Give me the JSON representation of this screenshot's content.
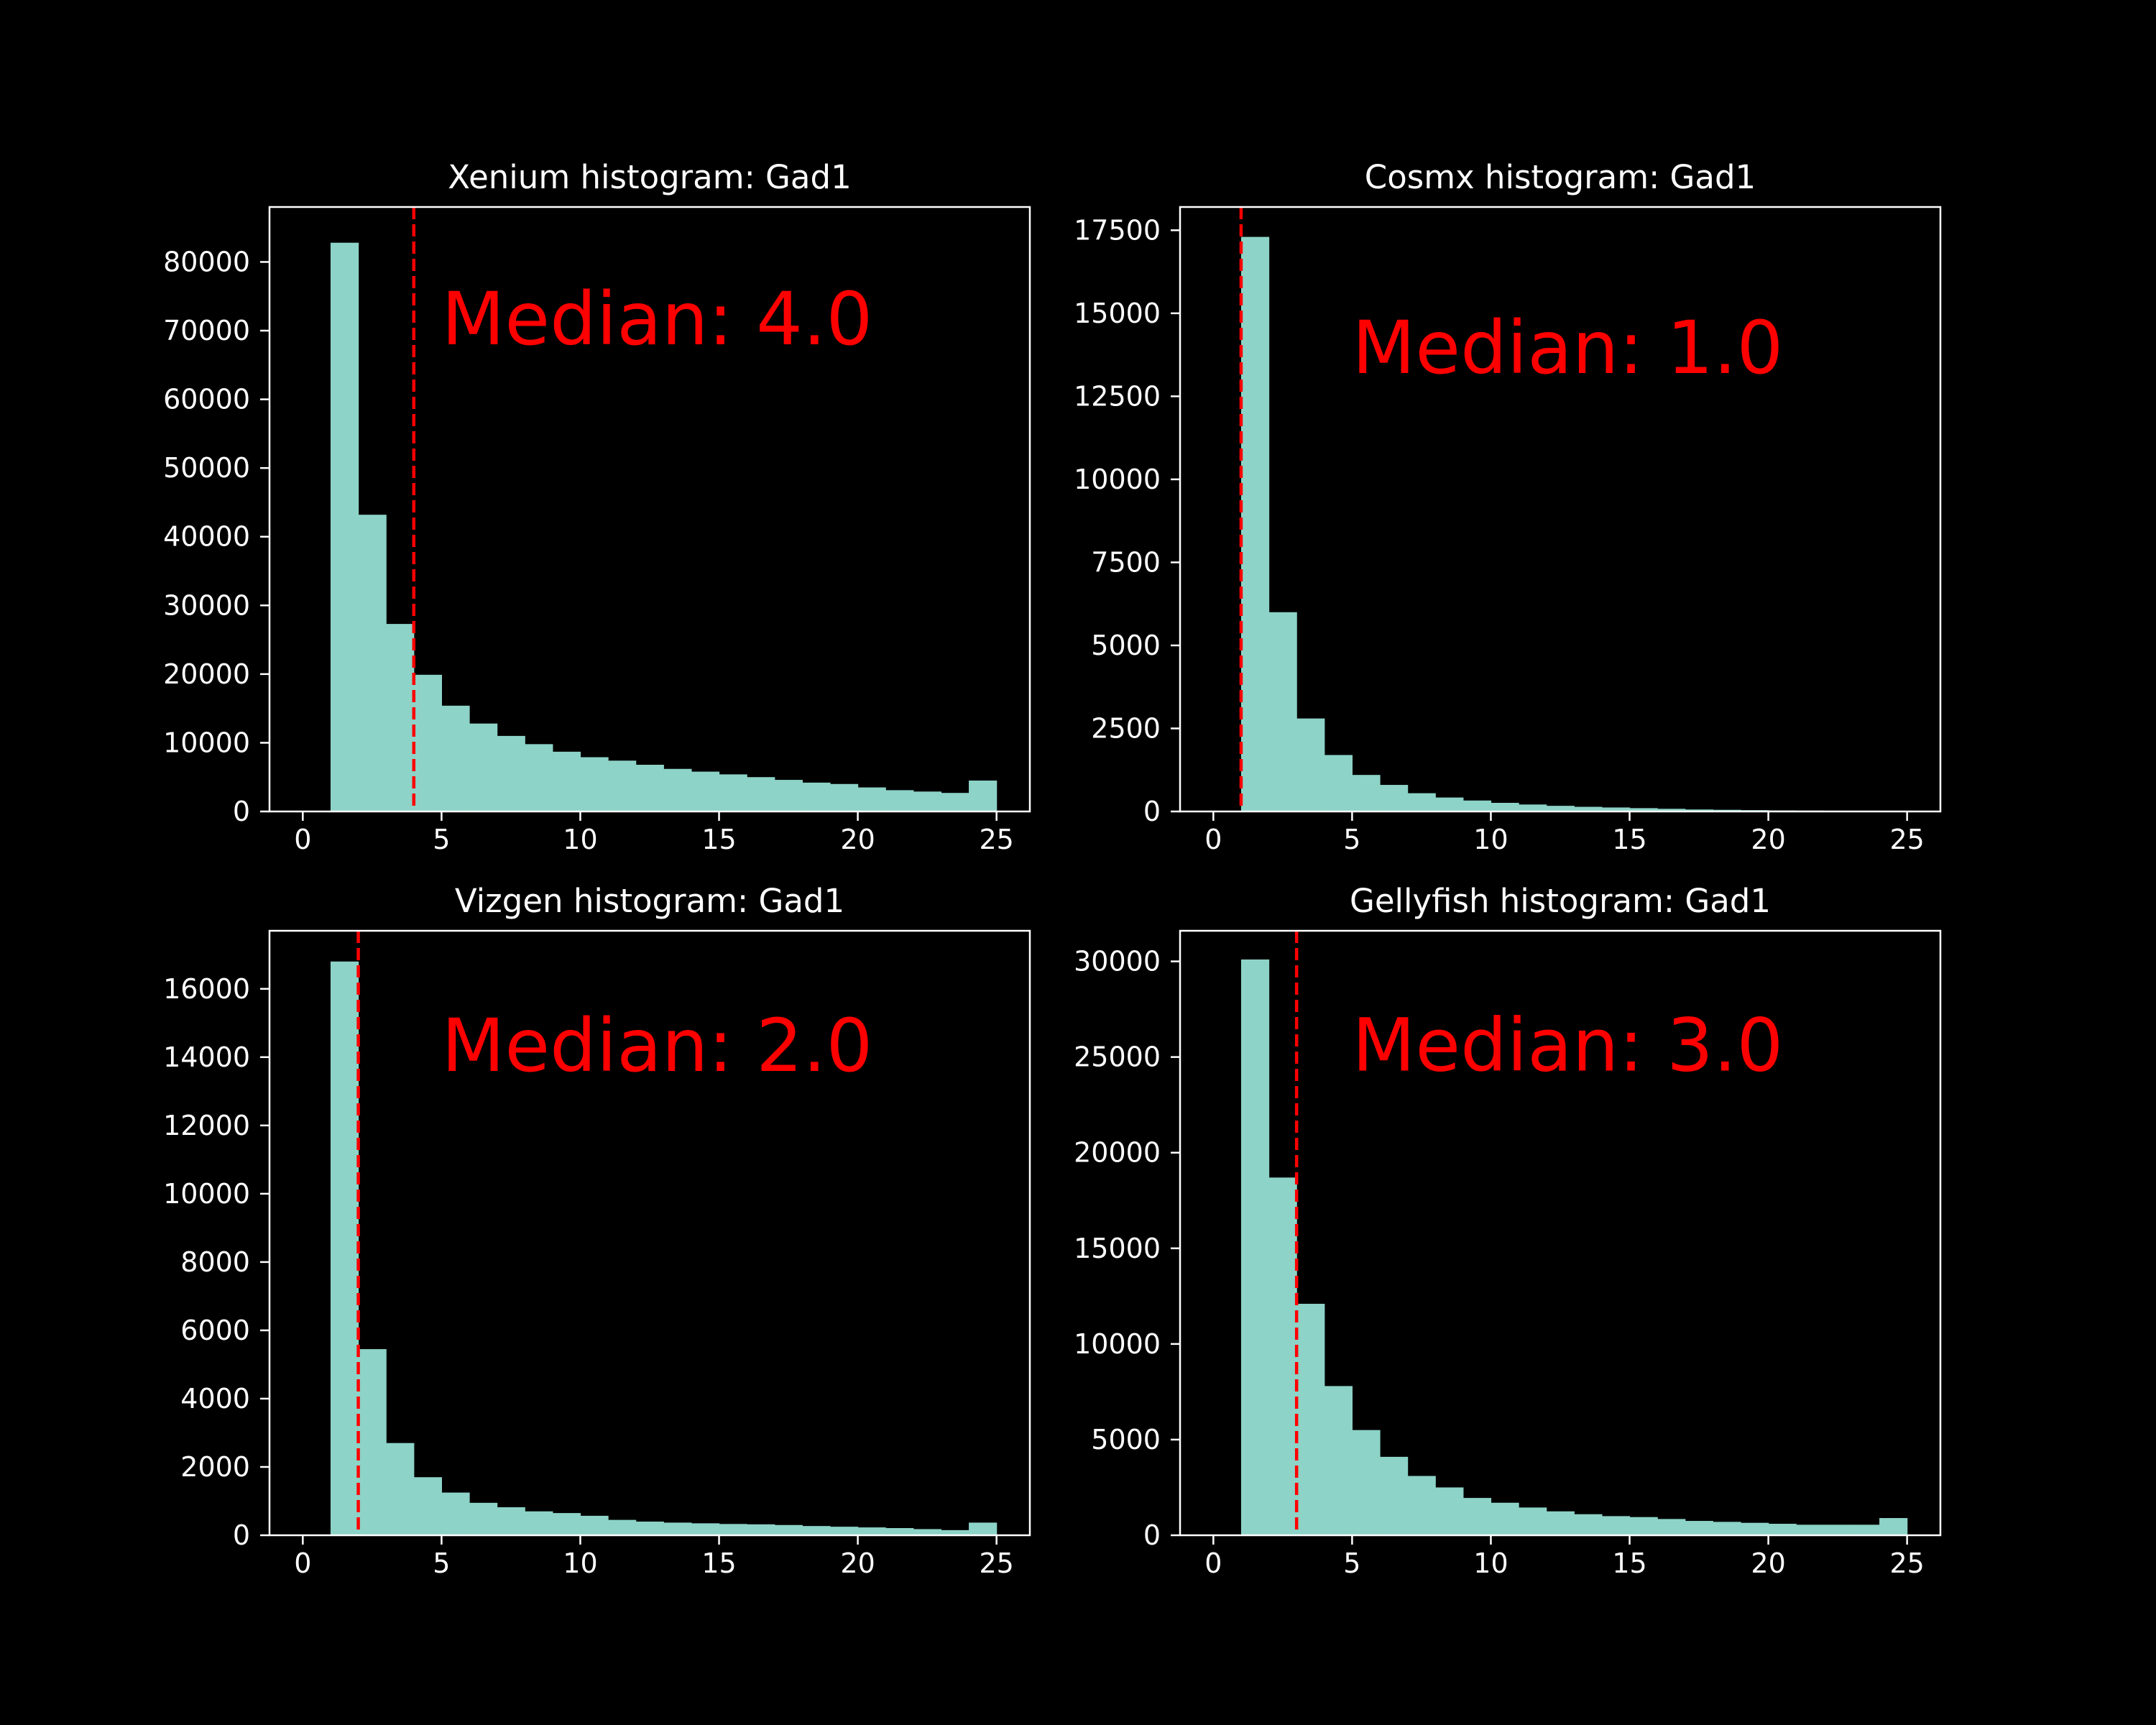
{
  "colors": {
    "background": "#000000",
    "bar": "#8dd3c7",
    "axis": "#ffffff",
    "median": "#ff0000"
  },
  "chart_data": [
    {
      "type": "bar",
      "title": "Xenium histogram: Gad1",
      "xlabel": "",
      "ylabel": "",
      "bin_edges": [
        1,
        2,
        3,
        4,
        5,
        6,
        7,
        8,
        9,
        10,
        11,
        12,
        13,
        14,
        15,
        16,
        17,
        18,
        19,
        20,
        21,
        22,
        23,
        24,
        25
      ],
      "values": [
        82800,
        43200,
        27300,
        19900,
        15400,
        12800,
        11000,
        9800,
        8700,
        7900,
        7400,
        6800,
        6200,
        5800,
        5400,
        5000,
        4600,
        4200,
        4000,
        3500,
        3100,
        2900,
        2700,
        4500
      ],
      "xlim": [
        -1.2,
        26.2
      ],
      "ylim": [
        0,
        88000
      ],
      "xticks": [
        0,
        5,
        10,
        15,
        20,
        25
      ],
      "yticks": [
        0,
        10000,
        20000,
        30000,
        40000,
        50000,
        60000,
        70000,
        80000
      ],
      "median": 4.0,
      "annotation": "Median: 4.0",
      "annotation_pos": [
        5,
        68000
      ],
      "grid": false,
      "legend": "none"
    },
    {
      "type": "bar",
      "title": "Cosmx histogram: Gad1",
      "xlabel": "",
      "ylabel": "",
      "bin_edges": [
        1,
        2,
        3,
        4,
        5,
        6,
        7,
        8,
        9,
        10,
        11,
        12,
        13,
        14,
        15,
        16,
        17,
        18,
        19,
        20,
        21,
        22,
        23,
        24,
        25
      ],
      "values": [
        17300,
        6000,
        2800,
        1700,
        1100,
        800,
        550,
        420,
        330,
        260,
        210,
        170,
        140,
        120,
        100,
        80,
        60,
        50,
        40,
        30,
        25,
        20,
        15,
        12
      ],
      "xlim": [
        -1.2,
        26.2
      ],
      "ylim": [
        0,
        18200
      ],
      "xticks": [
        0,
        5,
        10,
        15,
        20,
        25
      ],
      "yticks": [
        0,
        2500,
        5000,
        7500,
        10000,
        12500,
        15000,
        17500
      ],
      "median": 1.0,
      "annotation": "Median: 1.0",
      "annotation_pos": [
        5,
        13200
      ],
      "grid": false,
      "legend": "none"
    },
    {
      "type": "bar",
      "title": "Vizgen histogram: Gad1",
      "xlabel": "",
      "ylabel": "",
      "bin_edges": [
        1,
        2,
        3,
        4,
        5,
        6,
        7,
        8,
        9,
        10,
        11,
        12,
        13,
        14,
        15,
        16,
        17,
        18,
        19,
        20,
        21,
        22,
        23,
        24,
        25
      ],
      "values": [
        16800,
        5450,
        2700,
        1700,
        1250,
        950,
        820,
        700,
        650,
        570,
        450,
        400,
        370,
        350,
        330,
        320,
        300,
        270,
        250,
        230,
        210,
        180,
        150,
        370
      ],
      "xlim": [
        -1.2,
        26.2
      ],
      "ylim": [
        0,
        17700
      ],
      "xticks": [
        0,
        5,
        10,
        15,
        20,
        25
      ],
      "yticks": [
        0,
        2000,
        4000,
        6000,
        8000,
        10000,
        12000,
        14000,
        16000
      ],
      "median": 2.0,
      "annotation": "Median: 2.0",
      "annotation_pos": [
        5,
        13600
      ],
      "grid": false,
      "legend": "none"
    },
    {
      "type": "bar",
      "title": "Gellyfish histogram: Gad1",
      "xlabel": "",
      "ylabel": "",
      "bin_edges": [
        1,
        2,
        3,
        4,
        5,
        6,
        7,
        8,
        9,
        10,
        11,
        12,
        13,
        14,
        15,
        16,
        17,
        18,
        19,
        20,
        21,
        22,
        23,
        24,
        25
      ],
      "values": [
        30100,
        18700,
        12100,
        7800,
        5500,
        4100,
        3100,
        2500,
        1950,
        1700,
        1450,
        1250,
        1100,
        1000,
        950,
        850,
        750,
        700,
        650,
        600,
        550,
        550,
        550,
        900
      ],
      "xlim": [
        -1.2,
        26.2
      ],
      "ylim": [
        0,
        31600
      ],
      "xticks": [
        0,
        5,
        10,
        15,
        20,
        25
      ],
      "yticks": [
        0,
        5000,
        10000,
        15000,
        20000,
        25000,
        30000
      ],
      "median": 3.0,
      "annotation": "Median: 3.0",
      "annotation_pos": [
        5,
        24300
      ],
      "grid": false,
      "legend": "none"
    }
  ]
}
